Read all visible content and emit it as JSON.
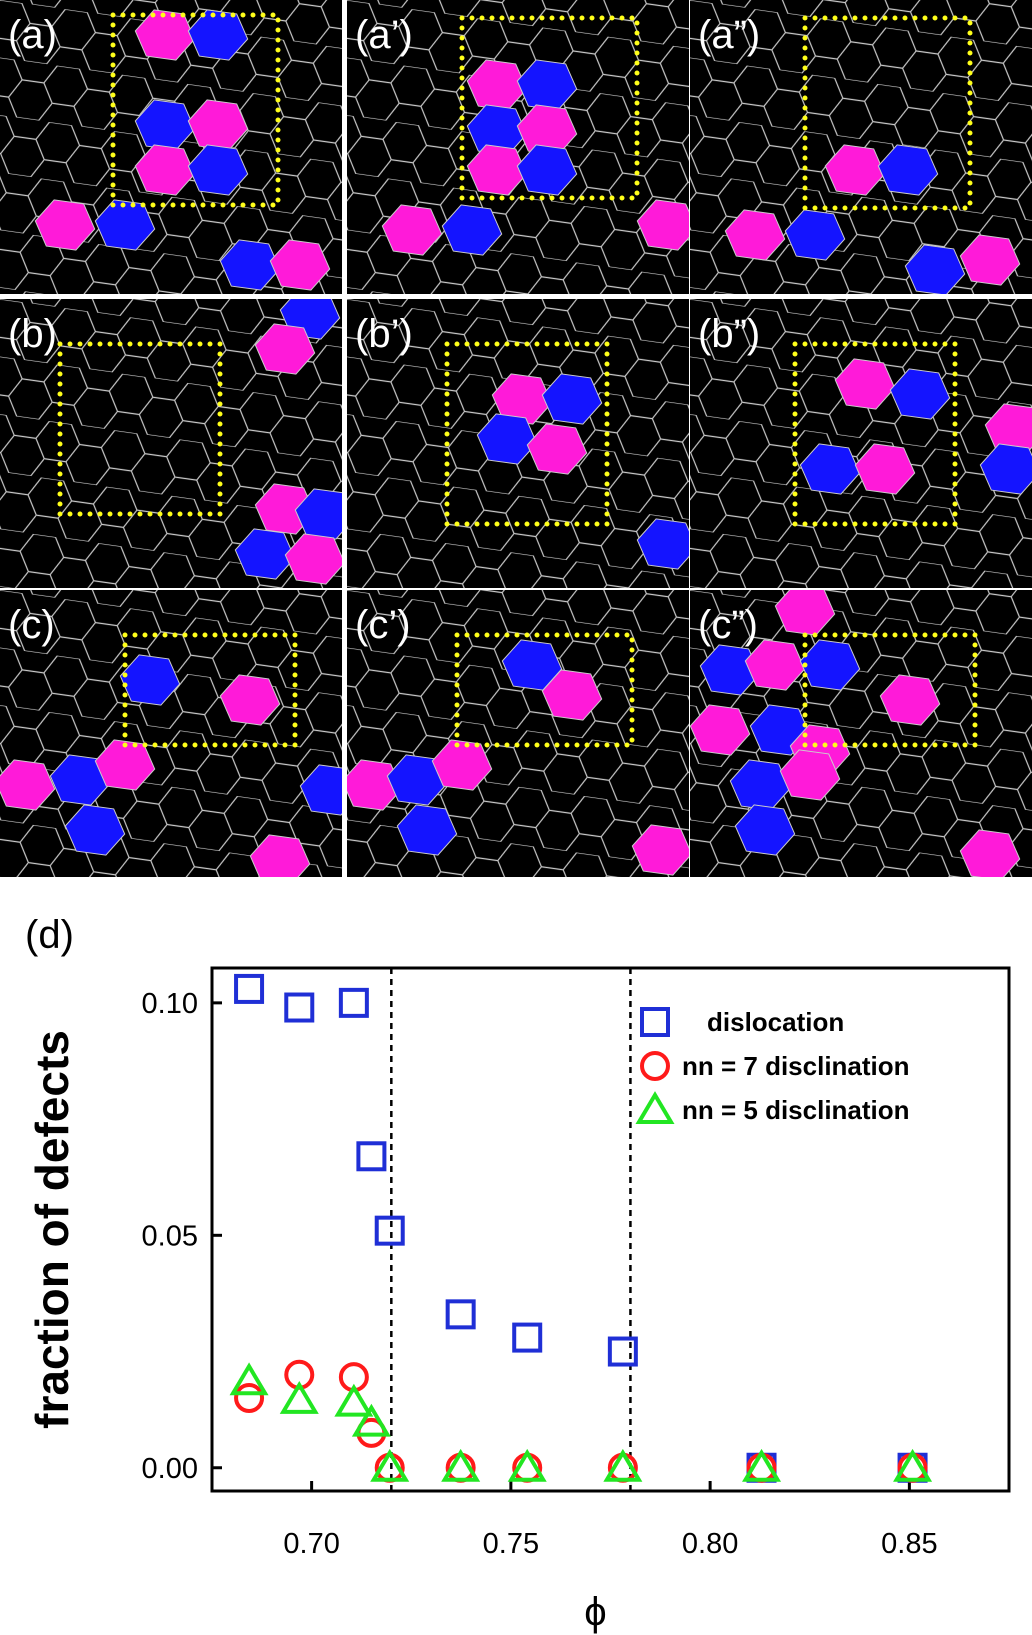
{
  "panels": [
    "(a)",
    "(a’)",
    "(a”)",
    "(b)",
    "(b’)",
    "(b”)",
    "(c)",
    "(c’)",
    "(c”)"
  ],
  "chart_data": {
    "type": "scatter",
    "label": "(d)",
    "xlabel": "ϕ",
    "ylabel": "fraction of defects",
    "x": [
      0.6843,
      0.6969,
      0.7106,
      0.715,
      0.7196,
      0.7374,
      0.7541,
      0.7781,
      0.8129,
      0.8508
    ],
    "series": [
      {
        "name": "dislocation",
        "color": "#1f2fd6",
        "marker": "square",
        "values": [
          0.103,
          0.099,
          0.1,
          0.067,
          0.051,
          0.033,
          0.028,
          0.025,
          0,
          0
        ]
      },
      {
        "name": "nn = 7 disclination",
        "color": "#ff1a1a",
        "marker": "circle",
        "values": [
          0.015,
          0.02,
          0.0195,
          0.0075,
          0,
          0,
          0,
          0,
          0,
          0
        ]
      },
      {
        "name": "nn = 5 disclination",
        "color": "#22e622",
        "marker": "triangle",
        "values": [
          0.0186,
          0.0146,
          0.014,
          0.0097,
          0,
          0,
          0,
          0,
          0,
          0
        ]
      }
    ],
    "vlines": [
      0.72,
      0.78
    ],
    "xlim": [
      0.675,
      0.875
    ],
    "ylim": [
      -0.005,
      0.1075
    ],
    "xticks": [
      {
        "value": 0.7,
        "label": "0.70"
      },
      0.75,
      {
        "value": 0.8,
        "label": "0.80"
      },
      0.85
    ],
    "yticks": [
      {
        "value": 0,
        "label": "0.00"
      },
      0.05,
      {
        "value": 0.1,
        "label": "0.10"
      }
    ],
    "legend": "upper right"
  }
}
